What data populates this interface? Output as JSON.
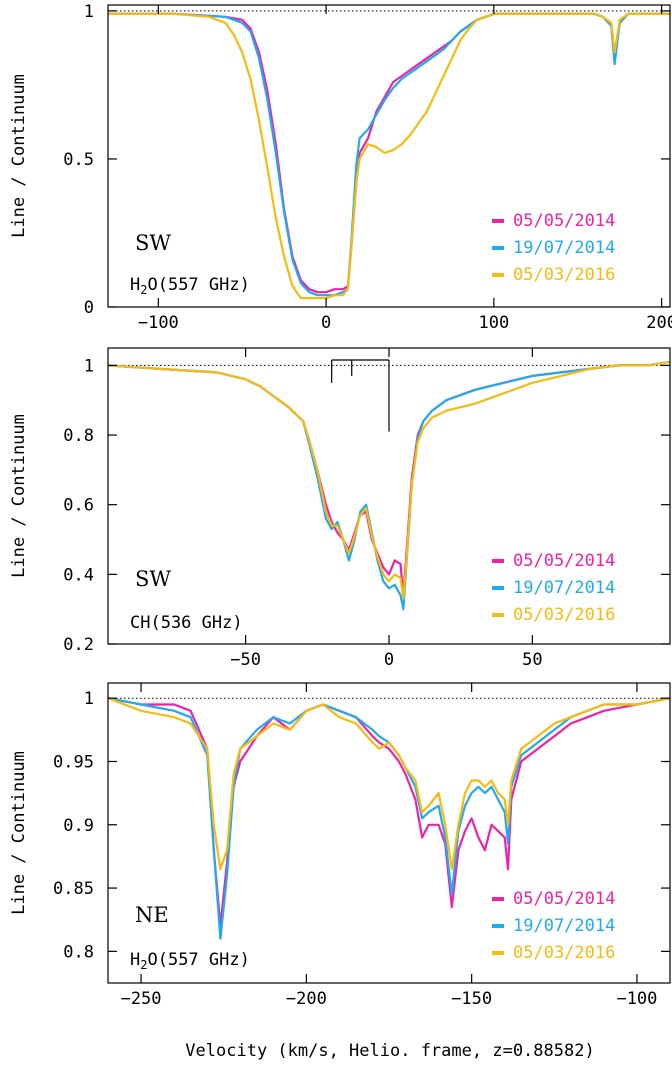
{
  "figure": {
    "xlabel": "Velocity (km/s, Helio. frame, z=0.88582)",
    "ylabel": "Line / Continuum"
  },
  "legend": [
    {
      "label": "05/05/2014",
      "color": "#ee22aa"
    },
    {
      "label": "19/07/2014",
      "color": "#22aaee"
    },
    {
      "label": "05/03/2016",
      "color": "#f5bb11"
    }
  ],
  "chart_data": [
    {
      "type": "line",
      "region": "SW",
      "species": "H2O(557 GHz)",
      "xlim": [
        -130,
        205
      ],
      "ylim": [
        0,
        1.02
      ],
      "xticks": [
        -100,
        0,
        100,
        200
      ],
      "xtick_labels": [
        "−100",
        "0",
        "100",
        "200"
      ],
      "yticks": [
        0,
        0.5,
        1
      ],
      "ytick_labels": [
        "0",
        "0.5",
        "1"
      ],
      "series": [
        {
          "name": "05/05/2014",
          "color": "#ee22aa",
          "x": [
            -130,
            -90,
            -60,
            -50,
            -45,
            -40,
            -35,
            -30,
            -25,
            -20,
            -15,
            -10,
            -5,
            0,
            5,
            10,
            13,
            15,
            18,
            20,
            25,
            30,
            35,
            40,
            45,
            50,
            55,
            60,
            65,
            70,
            75,
            80,
            85,
            90,
            100,
            120,
            150,
            160,
            165,
            170,
            172,
            175,
            180,
            190,
            205
          ],
          "y": [
            0.99,
            0.99,
            0.98,
            0.97,
            0.94,
            0.86,
            0.73,
            0.55,
            0.33,
            0.17,
            0.09,
            0.06,
            0.05,
            0.05,
            0.06,
            0.06,
            0.07,
            0.2,
            0.42,
            0.52,
            0.57,
            0.66,
            0.71,
            0.76,
            0.78,
            0.8,
            0.82,
            0.84,
            0.86,
            0.88,
            0.9,
            0.93,
            0.95,
            0.97,
            0.99,
            0.99,
            0.99,
            0.99,
            0.98,
            0.95,
            0.85,
            0.96,
            0.99,
            0.99,
            0.99
          ]
        },
        {
          "name": "19/07/2014",
          "color": "#22aaee",
          "x": [
            -130,
            -90,
            -60,
            -50,
            -45,
            -40,
            -35,
            -30,
            -25,
            -20,
            -15,
            -10,
            -5,
            0,
            5,
            10,
            13,
            15,
            18,
            20,
            25,
            30,
            35,
            40,
            45,
            50,
            55,
            60,
            65,
            70,
            75,
            80,
            85,
            90,
            100,
            120,
            150,
            160,
            165,
            170,
            172,
            175,
            180,
            190,
            205
          ],
          "y": [
            0.99,
            0.99,
            0.98,
            0.96,
            0.93,
            0.84,
            0.7,
            0.52,
            0.32,
            0.16,
            0.08,
            0.05,
            0.04,
            0.04,
            0.04,
            0.05,
            0.06,
            0.22,
            0.48,
            0.57,
            0.6,
            0.65,
            0.7,
            0.74,
            0.77,
            0.79,
            0.81,
            0.83,
            0.85,
            0.87,
            0.9,
            0.93,
            0.95,
            0.97,
            0.99,
            0.99,
            0.99,
            0.99,
            0.98,
            0.95,
            0.82,
            0.96,
            0.99,
            0.99,
            0.99
          ]
        },
        {
          "name": "05/03/2016",
          "color": "#f5bb11",
          "x": [
            -130,
            -90,
            -70,
            -60,
            -55,
            -50,
            -45,
            -40,
            -35,
            -30,
            -25,
            -20,
            -15,
            -10,
            -5,
            0,
            5,
            10,
            13,
            15,
            18,
            20,
            25,
            30,
            35,
            40,
            45,
            50,
            55,
            60,
            65,
            70,
            75,
            80,
            85,
            90,
            100,
            120,
            150,
            160,
            165,
            170,
            172,
            175,
            180,
            190,
            205
          ],
          "y": [
            0.99,
            0.99,
            0.98,
            0.96,
            0.92,
            0.86,
            0.77,
            0.63,
            0.47,
            0.3,
            0.17,
            0.07,
            0.03,
            0.03,
            0.03,
            0.03,
            0.04,
            0.04,
            0.06,
            0.2,
            0.42,
            0.5,
            0.55,
            0.54,
            0.52,
            0.53,
            0.55,
            0.58,
            0.62,
            0.66,
            0.72,
            0.78,
            0.84,
            0.9,
            0.94,
            0.97,
            0.99,
            0.99,
            0.99,
            0.99,
            0.98,
            0.96,
            0.86,
            0.97,
            0.99,
            0.99,
            0.99
          ]
        }
      ]
    },
    {
      "type": "line",
      "region": "SW",
      "species": "CH(536 GHz)",
      "xlim": [
        -98,
        98
      ],
      "ylim": [
        0.2,
        1.05
      ],
      "xticks": [
        -50,
        0,
        50
      ],
      "xtick_labels": [
        "−50",
        "0",
        "50"
      ],
      "yticks": [
        0.2,
        0.4,
        0.6,
        0.8,
        1
      ],
      "ytick_labels": [
        "0.2",
        "0.4",
        "0.6",
        "0.8",
        "1"
      ],
      "hyperfine_marker": {
        "x_top": [
          -20,
          0
        ],
        "x_ticks": [
          -20,
          -13,
          0
        ],
        "tick_bottoms": [
          0.95,
          0.97,
          0.81
        ]
      },
      "series": [
        {
          "name": "05/05/2014",
          "color": "#ee22aa",
          "x": [
            -98,
            -80,
            -60,
            -50,
            -45,
            -40,
            -35,
            -30,
            -28,
            -25,
            -22,
            -20,
            -18,
            -16,
            -14,
            -12,
            -10,
            -8,
            -6,
            -4,
            -2,
            0,
            2,
            4,
            5,
            6,
            8,
            10,
            12,
            15,
            20,
            30,
            40,
            50,
            60,
            70,
            80,
            90,
            98
          ],
          "y": [
            1.0,
            0.99,
            0.98,
            0.96,
            0.94,
            0.91,
            0.88,
            0.84,
            0.79,
            0.7,
            0.6,
            0.55,
            0.52,
            0.5,
            0.47,
            0.52,
            0.57,
            0.58,
            0.5,
            0.46,
            0.42,
            0.4,
            0.44,
            0.43,
            0.34,
            0.45,
            0.68,
            0.8,
            0.84,
            0.87,
            0.9,
            0.93,
            0.95,
            0.97,
            0.98,
            0.99,
            1.0,
            1.0,
            1.01
          ]
        },
        {
          "name": "19/07/2014",
          "color": "#22aaee",
          "x": [
            -98,
            -80,
            -60,
            -50,
            -45,
            -40,
            -35,
            -30,
            -28,
            -25,
            -22,
            -20,
            -18,
            -16,
            -14,
            -12,
            -10,
            -8,
            -6,
            -4,
            -2,
            0,
            2,
            4,
            5,
            6,
            8,
            10,
            12,
            15,
            20,
            30,
            40,
            50,
            60,
            70,
            80,
            90,
            98
          ],
          "y": [
            1.0,
            0.99,
            0.98,
            0.96,
            0.94,
            0.91,
            0.88,
            0.84,
            0.78,
            0.68,
            0.56,
            0.53,
            0.55,
            0.5,
            0.44,
            0.5,
            0.58,
            0.6,
            0.52,
            0.44,
            0.38,
            0.36,
            0.37,
            0.34,
            0.3,
            0.42,
            0.66,
            0.79,
            0.84,
            0.87,
            0.9,
            0.93,
            0.95,
            0.97,
            0.98,
            0.99,
            1.0,
            1.0,
            1.01
          ]
        },
        {
          "name": "05/03/2016",
          "color": "#f5bb11",
          "x": [
            -98,
            -80,
            -60,
            -50,
            -45,
            -40,
            -35,
            -30,
            -28,
            -25,
            -22,
            -20,
            -18,
            -16,
            -14,
            -12,
            -10,
            -8,
            -6,
            -4,
            -2,
            0,
            2,
            4,
            5,
            6,
            8,
            10,
            12,
            15,
            20,
            30,
            40,
            50,
            60,
            70,
            80,
            90,
            98
          ],
          "y": [
            1.0,
            0.99,
            0.98,
            0.96,
            0.94,
            0.91,
            0.88,
            0.84,
            0.79,
            0.7,
            0.58,
            0.54,
            0.54,
            0.5,
            0.46,
            0.51,
            0.57,
            0.59,
            0.51,
            0.45,
            0.4,
            0.38,
            0.4,
            0.39,
            0.33,
            0.43,
            0.66,
            0.78,
            0.82,
            0.85,
            0.87,
            0.89,
            0.92,
            0.95,
            0.97,
            0.99,
            1.0,
            1.0,
            1.01
          ]
        }
      ]
    },
    {
      "type": "line",
      "region": "NE",
      "species": "H2O(557 GHz)",
      "xlim": [
        -260,
        -90
      ],
      "ylim": [
        0.775,
        1.012
      ],
      "xticks": [
        -250,
        -200,
        -150,
        -100
      ],
      "xtick_labels": [
        "−250",
        "−200",
        "−150",
        "−100"
      ],
      "yticks": [
        0.8,
        0.85,
        0.9,
        0.95,
        1
      ],
      "ytick_labels": [
        "0.8",
        "0.85",
        "0.9",
        "0.95",
        "1"
      ],
      "series": [
        {
          "name": "05/05/2014",
          "color": "#ee22aa",
          "x": [
            -260,
            -250,
            -240,
            -235,
            -230,
            -228,
            -226,
            -224,
            -222,
            -220,
            -215,
            -210,
            -205,
            -200,
            -195,
            -190,
            -185,
            -180,
            -178,
            -175,
            -172,
            -170,
            -167,
            -165,
            -163,
            -160,
            -158,
            -156,
            -154,
            -152,
            -150,
            -148,
            -146,
            -144,
            -142,
            -140,
            -139,
            -138,
            -135,
            -130,
            -125,
            -120,
            -115,
            -110,
            -100,
            -90
          ],
          "y": [
            1.0,
            0.995,
            0.995,
            0.99,
            0.96,
            0.88,
            0.82,
            0.87,
            0.93,
            0.95,
            0.97,
            0.985,
            0.975,
            0.99,
            0.995,
            0.99,
            0.985,
            0.97,
            0.965,
            0.96,
            0.95,
            0.94,
            0.92,
            0.89,
            0.9,
            0.9,
            0.885,
            0.835,
            0.88,
            0.895,
            0.905,
            0.89,
            0.88,
            0.9,
            0.895,
            0.89,
            0.865,
            0.92,
            0.95,
            0.96,
            0.97,
            0.98,
            0.985,
            0.99,
            0.995,
            1.0
          ]
        },
        {
          "name": "19/07/2014",
          "color": "#22aaee",
          "x": [
            -260,
            -250,
            -240,
            -235,
            -230,
            -228,
            -226,
            -224,
            -222,
            -220,
            -215,
            -210,
            -205,
            -200,
            -195,
            -190,
            -185,
            -180,
            -178,
            -175,
            -172,
            -170,
            -167,
            -165,
            -163,
            -160,
            -158,
            -156,
            -154,
            -152,
            -150,
            -148,
            -146,
            -144,
            -142,
            -140,
            -139,
            -138,
            -135,
            -130,
            -125,
            -120,
            -115,
            -110,
            -100,
            -90
          ],
          "y": [
            1.0,
            0.995,
            0.99,
            0.985,
            0.955,
            0.88,
            0.81,
            0.86,
            0.93,
            0.96,
            0.975,
            0.985,
            0.98,
            0.99,
            0.995,
            0.99,
            0.985,
            0.975,
            0.97,
            0.965,
            0.955,
            0.945,
            0.93,
            0.905,
            0.91,
            0.915,
            0.89,
            0.845,
            0.895,
            0.915,
            0.925,
            0.93,
            0.925,
            0.93,
            0.92,
            0.91,
            0.885,
            0.93,
            0.955,
            0.965,
            0.975,
            0.985,
            0.99,
            0.995,
            0.995,
            1.0
          ]
        },
        {
          "name": "05/03/2016",
          "color": "#f5bb11",
          "x": [
            -260,
            -250,
            -240,
            -235,
            -230,
            -228,
            -226,
            -224,
            -222,
            -220,
            -215,
            -210,
            -205,
            -200,
            -195,
            -190,
            -185,
            -180,
            -178,
            -175,
            -172,
            -170,
            -167,
            -165,
            -163,
            -160,
            -158,
            -156,
            -154,
            -152,
            -150,
            -148,
            -146,
            -144,
            -142,
            -140,
            -139,
            -138,
            -135,
            -130,
            -125,
            -120,
            -115,
            -110,
            -100,
            -90
          ],
          "y": [
            1.0,
            0.99,
            0.985,
            0.98,
            0.96,
            0.9,
            0.865,
            0.88,
            0.94,
            0.96,
            0.97,
            0.98,
            0.975,
            0.99,
            0.995,
            0.985,
            0.98,
            0.965,
            0.96,
            0.965,
            0.955,
            0.945,
            0.935,
            0.91,
            0.915,
            0.925,
            0.9,
            0.865,
            0.9,
            0.925,
            0.935,
            0.935,
            0.93,
            0.935,
            0.925,
            0.92,
            0.9,
            0.935,
            0.96,
            0.97,
            0.98,
            0.985,
            0.99,
            0.995,
            0.995,
            1.0
          ]
        }
      ]
    }
  ]
}
